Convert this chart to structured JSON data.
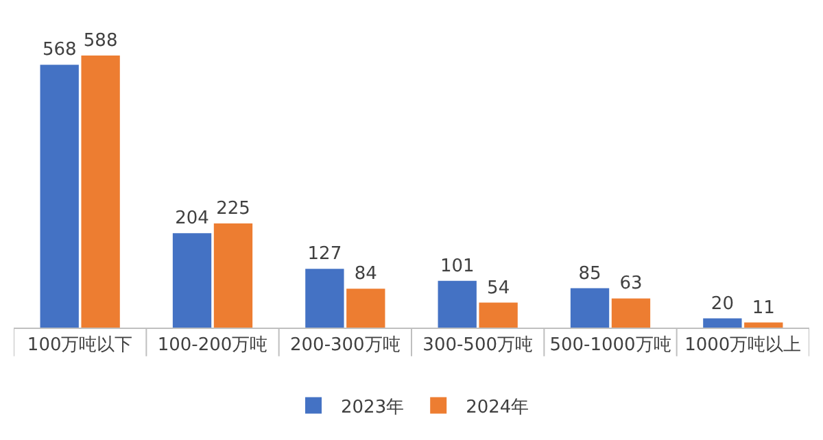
{
  "chart_data": {
    "type": "bar",
    "categories": [
      "100万吨以下",
      "100-200万吨",
      "200-300万吨",
      "300-500万吨",
      "500-1000万吨",
      "1000万吨以上"
    ],
    "series": [
      {
        "name": "2023年",
        "color": "#4472c4",
        "values": [
          568,
          204,
          127,
          101,
          85,
          20
        ]
      },
      {
        "name": "2024年",
        "color": "#ed7d31",
        "values": [
          588,
          225,
          84,
          54,
          63,
          11
        ]
      }
    ],
    "data_labels": true,
    "legend": "bottom"
  }
}
